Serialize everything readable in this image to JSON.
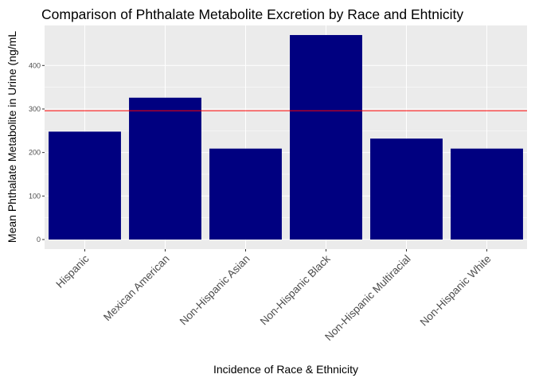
{
  "chart_data": {
    "type": "bar",
    "title": "Comparison of Phthalate Metabolite Excretion by Race and Ehtnicity",
    "xlabel": "Incidence of Race & Ethnicity",
    "ylabel": "Mean Phthalate Metabolite in Urine (ng/mL",
    "categories": [
      "Hispanic",
      "Mexican American",
      "Non-Hispanic Asian",
      "Non-Hispanic Black",
      "Non-Hispanic Multiracial",
      "Non-Hispanic White"
    ],
    "values": [
      248,
      326,
      209,
      470,
      232,
      209
    ],
    "ylim": [
      -22,
      492
    ],
    "yticks": [
      0,
      100,
      200,
      300,
      400
    ],
    "reference_line": 296,
    "grid": true,
    "colors": {
      "bar": "#000080",
      "reference_line": "#ff0000",
      "panel": "#ebebeb",
      "grid": "#ffffff"
    }
  }
}
